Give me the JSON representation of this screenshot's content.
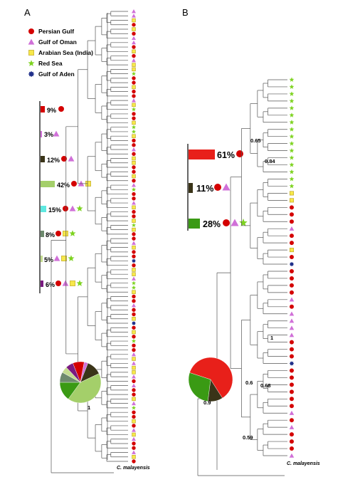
{
  "panels": [
    {
      "label": "A"
    },
    {
      "label": "B"
    }
  ],
  "legend": [
    {
      "label": "Persian Gulf",
      "shape": "circle",
      "color": "#d40000"
    },
    {
      "label": "Gulf of Oman",
      "shape": "triangle",
      "color": "#d070d8"
    },
    {
      "label": "Arabian Sea (India)",
      "shape": "square",
      "color": "#f7e84a"
    },
    {
      "label": "Red Sea",
      "shape": "star",
      "color": "#7ed321"
    },
    {
      "label": "Gulf of Aden",
      "shape": "gear",
      "color": "#20308a"
    }
  ],
  "panel_a": {
    "bars": [
      {
        "pct": "9%",
        "color": "#d40000",
        "regions": [
          "circle"
        ]
      },
      {
        "pct": "3%",
        "color": "#d070d8",
        "regions": [
          "triangle"
        ]
      },
      {
        "pct": "12%",
        "color": "#3a3418",
        "regions": [
          "circle",
          "triangle"
        ]
      },
      {
        "pct": "42%",
        "color": "#a4cf6a",
        "regions": [
          "circle",
          "triangle",
          "square"
        ]
      },
      {
        "pct": "15%",
        "color": "#5ee8e0",
        "regions": [
          "circle",
          "triangle",
          "star"
        ]
      },
      {
        "pct": "8%",
        "color": "#6e8a6e",
        "regions": [
          "circle",
          "square",
          "star"
        ]
      },
      {
        "pct": "5%",
        "color": "#c4dc90",
        "regions": [
          "triangle",
          "square",
          "star"
        ]
      },
      {
        "pct": "6%",
        "color": "#7a1a80",
        "regions": [
          "circle",
          "triangle",
          "square",
          "star"
        ]
      }
    ],
    "root_support": "1",
    "outgroup": "C. malayensis",
    "tips": "TTSCSCTTCSCTSSRCCSCCTSRCCSRRSCCTCSSCCSCTRCCTSCCSRSCCTSCCGCSSTRRSCCTCCSGCSCRCCTSTSSTCTCCSTRCCSCTSTCCTSC"
  },
  "panel_b": {
    "bars": [
      {
        "pct": "61%",
        "color": "#e8201a",
        "regions": [
          "circle"
        ]
      },
      {
        "pct": "11%",
        "color": "#3a3418",
        "regions": [
          "circle",
          "triangle"
        ]
      },
      {
        "pct": "28%",
        "color": "#3a9a14",
        "regions": [
          "circle",
          "triangle",
          "star"
        ]
      }
    ],
    "supports": [
      {
        "label": "0.65"
      },
      {
        "label": "0.84"
      },
      {
        "label": "1"
      },
      {
        "label": "0.6"
      },
      {
        "label": "0.68"
      },
      {
        "label": "0.9"
      },
      {
        "label": "0.59"
      }
    ],
    "outgroup": "C. malayensis",
    "tips": "RRRRRRRRRRRRRRRRSSCCCTCCSCGCCCCTCTTTTCCCGCCCCCCTCTCCCT"
  },
  "pie_a": {
    "segments": [
      {
        "value": 9,
        "color": "#d40000"
      },
      {
        "value": 3,
        "color": "#d070d8"
      },
      {
        "value": 12,
        "color": "#3a3418"
      },
      {
        "value": 42,
        "color": "#a4cf6a"
      },
      {
        "value": 15,
        "color": "#3a9a14"
      },
      {
        "value": 8,
        "color": "#6e8a6e"
      },
      {
        "value": 5,
        "color": "#c4dc90"
      },
      {
        "value": 6,
        "color": "#7a1a80"
      }
    ]
  },
  "pie_b": {
    "segments": [
      {
        "value": 61,
        "color": "#e8201a"
      },
      {
        "value": 11,
        "color": "#3a3418"
      },
      {
        "value": 28,
        "color": "#3a9a14"
      }
    ]
  }
}
